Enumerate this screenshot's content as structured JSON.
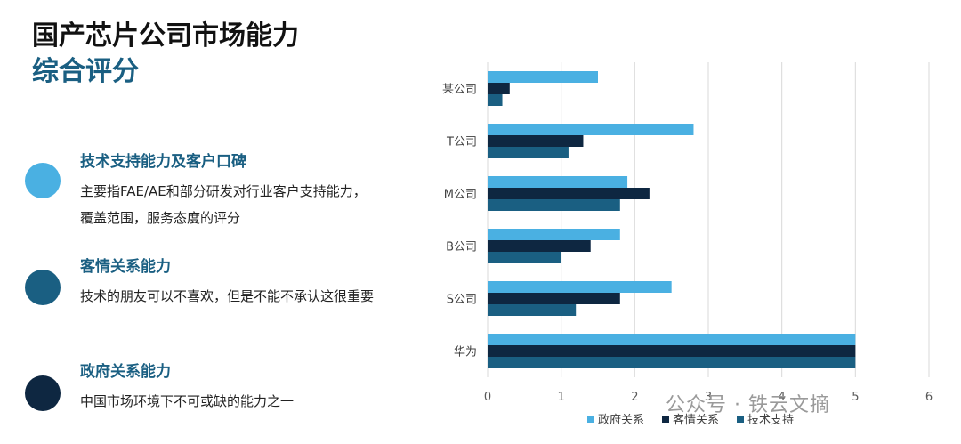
{
  "title": "国产芯片公司市场能力",
  "subtitle": "综合评分",
  "items": [
    {
      "heading": "技术支持能力及客户口碑",
      "desc": "主要指FAE/AE和部分研发对行业客户支持能力，覆盖范围，服务态度的评分",
      "color": "#4ab0e2",
      "head_color": "#1a5f82"
    },
    {
      "heading": "客情关系能力",
      "desc": "技术的朋友可以不喜欢，但是不能不承认这很重要",
      "color": "#1a5f82",
      "head_color": "#1a5f82"
    },
    {
      "heading": "政府关系能力",
      "desc": "中国市场环境下不可或缺的能力之一",
      "color": "#0e2741",
      "head_color": "#1a5f82"
    }
  ],
  "watermark": "公众号 · 铁云文摘",
  "chart_data": {
    "type": "bar",
    "orientation": "horizontal",
    "categories": [
      "某公司",
      "T公司",
      "M公司",
      "B公司",
      "S公司",
      "华为"
    ],
    "series": [
      {
        "name": "政府关系",
        "color": "#4ab0e2",
        "values": [
          1.5,
          2.8,
          1.9,
          1.8,
          2.5,
          5
        ]
      },
      {
        "name": "客情关系",
        "color": "#0e2741",
        "values": [
          0.3,
          1.3,
          2.2,
          1.4,
          1.8,
          5
        ]
      },
      {
        "name": "技术支持",
        "color": "#1a5f82",
        "values": [
          0.2,
          1.1,
          1.8,
          1.0,
          1.2,
          5
        ]
      }
    ],
    "xlim": [
      0,
      6
    ],
    "xticks": [
      0,
      1,
      2,
      3,
      4,
      5,
      6
    ],
    "grid": true,
    "legend": "bottom"
  }
}
